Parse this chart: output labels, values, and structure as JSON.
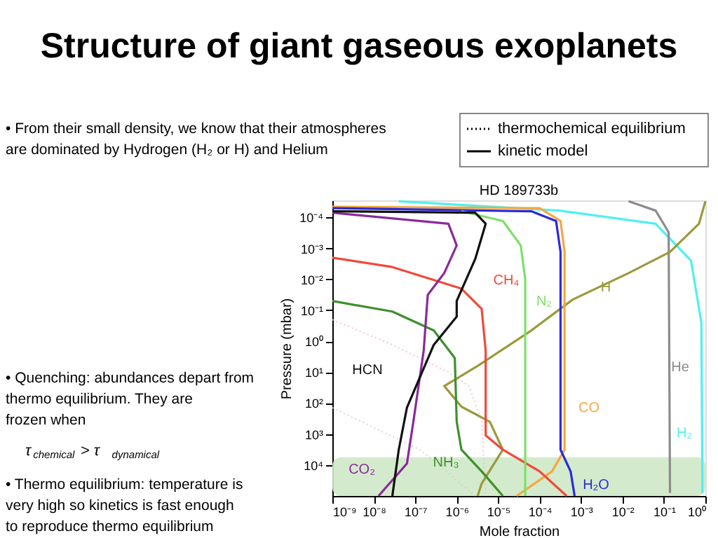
{
  "chart_data": {
    "type": "line",
    "title": "Structure of giant gaseous exoplanets",
    "subtitle": "HD 189733b",
    "xlabel": "Mole fraction",
    "ylabel": "Pressure (mbar)",
    "log": "xy",
    "grid": false,
    "marker": "none",
    "xlim": [
      1e-09,
      1
    ],
    "ylim": [
      100000,
      2.8e-05
    ],
    "xticks": [
      {
        "value": 1e-09,
        "label": "10⁻⁹"
      },
      {
        "value": 1e-08,
        "label": "10⁻⁸"
      },
      {
        "value": 1e-07,
        "label": "10⁻⁷"
      },
      {
        "value": 1e-06,
        "label": "10⁻⁶"
      },
      {
        "value": 1e-05,
        "label": "10⁻⁵"
      },
      {
        "value": 0.0001,
        "label": "10⁻⁴"
      },
      {
        "value": 0.001,
        "label": "10⁻³"
      },
      {
        "value": 0.01,
        "label": "10⁻²"
      },
      {
        "value": 0.1,
        "label": "10⁻¹"
      },
      {
        "value": 1,
        "label": "10⁰"
      }
    ],
    "yticks": [
      {
        "value": 0.0001,
        "label": "10⁻⁴"
      },
      {
        "value": 0.001,
        "label": "10⁻³"
      },
      {
        "value": 0.01,
        "label": "10⁻²"
      },
      {
        "value": 0.1,
        "label": "10⁻¹"
      },
      {
        "value": 1,
        "label": "10⁰"
      },
      {
        "value": 10,
        "label": "10¹"
      },
      {
        "value": 100,
        "label": "10²"
      },
      {
        "value": 1000,
        "label": "10³"
      },
      {
        "value": 10000,
        "label": "10⁴"
      }
    ],
    "bands": [
      {
        "axis": "y",
        "from": 5600,
        "to": 100000,
        "color": "#cfe8c6"
      }
    ],
    "series": [
      {
        "color": "#f4b6c0",
        "line_style": "dotted",
        "x": [
          1e-09,
          2.8e-08,
          6.3e-07,
          2e-06,
          4e-06,
          5e-06
        ],
        "values": [
          0.2,
          1.3,
          10,
          28,
          400,
          100000
        ]
      },
      {
        "color": "#d0d0d0",
        "line_style": "dotted",
        "x": [
          1e-09,
          1.3e-07,
          2.8e-06
        ],
        "values": [
          140,
          3200,
          100000
        ]
      },
      {
        "name": "H₂",
        "color": "#4ff0f0",
        "line_style": "solid",
        "x": [
          4e-08,
          0.0003,
          0.063,
          0.45,
          0.8,
          0.85
        ],
        "values": [
          3e-05,
          6e-05,
          0.00016,
          0.0025,
          0.25,
          80000
        ]
      },
      {
        "name": "He",
        "color": "#8c8c8c",
        "line_style": "solid",
        "x": [
          0.014,
          0.063,
          0.13,
          0.14
        ],
        "values": [
          3e-05,
          6e-05,
          0.0003,
          80000
        ]
      },
      {
        "name": "H",
        "color": "#9a9a3c",
        "line_style": "solid",
        "x": [
          1,
          0.7,
          0.14,
          0.014,
          0.00063,
          6.3e-05,
          3.2e-06,
          5e-07,
          1.3e-06,
          6.3e-06,
          1.3e-05,
          4e-06,
          3.2e-06
        ],
        "values": [
          3e-05,
          0.00016,
          0.0013,
          0.0063,
          0.045,
          0.45,
          6.3,
          28,
          130,
          400,
          3200,
          40000,
          100000
        ]
      },
      {
        "name": "CO",
        "color": "#f5a742",
        "line_style": "solid",
        "x": [
          1e-09,
          0.0001,
          0.00032,
          0.0004,
          0.0004,
          0.0002,
          2.8e-05
        ],
        "values": [
          4.5e-05,
          5e-05,
          0.00013,
          0.0013,
          3200,
          16000,
          100000
        ]
      },
      {
        "name": "H₂O",
        "color": "#2b2bd9",
        "line_style": "solid",
        "x": [
          1e-09,
          6.3e-05,
          0.00025,
          0.00032,
          0.00032,
          0.00056,
          0.0007
        ],
        "values": [
          5e-05,
          6.3e-05,
          0.00013,
          0.0013,
          3200,
          16000,
          100000
        ]
      },
      {
        "name": "CH₄",
        "color": "#f04a3a",
        "line_style": "solid",
        "x": [
          1e-09,
          2.8e-08,
          1.3e-06,
          4e-06,
          5e-06,
          5e-06,
          1.3e-05,
          0.0001,
          0.00045
        ],
        "values": [
          0.002,
          0.004,
          0.02,
          0.09,
          2,
          1100,
          3200,
          16000,
          100000
        ]
      },
      {
        "name": "N₂",
        "color": "#7ee06a",
        "line_style": "solid",
        "x": [
          1.3e-06,
          1.3e-05,
          3.5e-05,
          4.5e-05,
          4.5e-05
        ],
        "values": [
          6.3e-05,
          0.00013,
          0.0008,
          0.01,
          100000
        ]
      },
      {
        "name": "NH₃",
        "color": "#3f8f2f",
        "line_style": "solid",
        "x": [
          1e-09,
          2.8e-08,
          2.8e-07,
          9e-07,
          1e-06,
          1.3e-06,
          4e-06,
          1.3e-05
        ],
        "values": [
          0.05,
          0.11,
          0.45,
          3.5,
          400,
          3200,
          16000,
          100000
        ]
      },
      {
        "name": "CO₂",
        "color": "#8a2a9a",
        "line_style": "solid",
        "x": [
          1e-09,
          6.3e-07,
          1e-06,
          5e-07,
          2e-07,
          1.6e-07,
          9e-08,
          6.3e-08,
          1.3e-08
        ],
        "values": [
          7e-05,
          0.00016,
          0.0008,
          0.0063,
          0.032,
          2,
          400,
          9000,
          100000
        ]
      },
      {
        "name": "HCN",
        "color": "#111111",
        "line_style": "solid",
        "x": [
          1e-09,
          2.8e-06,
          5e-06,
          2.8e-06,
          1e-06,
          1e-06,
          2.8e-07,
          6.3e-08,
          4e-08,
          2.8e-08
        ],
        "values": [
          6.3e-05,
          7e-05,
          0.00016,
          0.0022,
          0.05,
          0.16,
          1.3,
          140,
          3200,
          100000
        ]
      }
    ],
    "annotations": [
      "• From their small density, we know that their atmospheres are dominated by Hydrogen (H₂ or H) and Helium",
      "• Quenching: abundances depart from thermo equilibrium. They are frozen when",
      "τ$_{chemical}$ > τ$_{dynamical}$",
      "• Thermo equilibrium: temperature is very high so kinetics is fast enough to reproduce thermo equilibrium",
      "thermochemical equilibrium",
      "kinetic model"
    ]
  }
}
